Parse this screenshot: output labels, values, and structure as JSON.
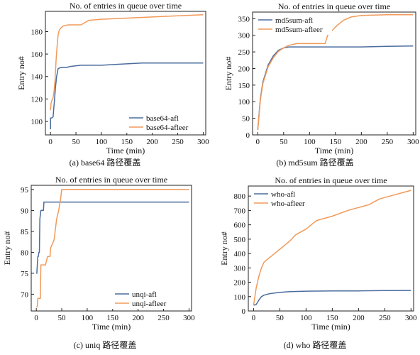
{
  "colors": {
    "afl": "#4a6c9e",
    "afleer": "#f19a5a",
    "axis": "#222222"
  },
  "chart_data": [
    {
      "type": "line",
      "title": "No. of entries in queue over time",
      "xlabel": "Time (min)",
      "ylabel": "Entry no#",
      "xlim": [
        -10,
        305
      ],
      "ylim": [
        88,
        198
      ],
      "xticks": [
        0,
        50,
        100,
        150,
        200,
        250,
        300
      ],
      "yticks": [
        100,
        120,
        140,
        160,
        180
      ],
      "legend_position": "lower-right",
      "caption": "(a) base64 路径覆盖",
      "series": [
        {
          "name": "base64-afl",
          "color": "#4a6c9e",
          "x": [
            0,
            0.2,
            2,
            5,
            8,
            10,
            12,
            15,
            20,
            30,
            40,
            60,
            100,
            140,
            180,
            300
          ],
          "y": [
            93,
            103,
            103,
            104,
            120,
            131,
            140,
            147,
            148,
            148,
            149,
            150,
            150,
            151,
            152,
            152
          ]
        },
        {
          "name": "base64-afleer",
          "color": "#f19a5a",
          "x": [
            0,
            1,
            3,
            5,
            7,
            9,
            11,
            13,
            15,
            17,
            20,
            25,
            35,
            60,
            75,
            100,
            150,
            200,
            250,
            300
          ],
          "y": [
            110,
            116,
            119,
            121,
            127,
            137,
            155,
            167,
            177,
            181,
            183,
            185,
            186,
            186,
            190,
            191,
            192,
            193,
            194,
            195
          ]
        }
      ]
    },
    {
      "type": "line",
      "title": "No. of entries in queue over time",
      "xlabel": "Time (min)",
      "ylabel": "Entry no#",
      "xlim": [
        -10,
        305
      ],
      "ylim": [
        0,
        370
      ],
      "xticks": [
        0,
        50,
        100,
        150,
        200,
        250,
        300
      ],
      "yticks": [
        0,
        50,
        100,
        150,
        200,
        250,
        300,
        350
      ],
      "legend_position": "top-left",
      "caption": "(b) md5sum 路径覆盖",
      "series": [
        {
          "name": "md5sum-afl",
          "color": "#4a6c9e",
          "x": [
            0,
            5,
            10,
            20,
            30,
            40,
            50,
            60,
            80,
            100,
            150,
            200,
            250,
            300
          ],
          "y": [
            15,
            110,
            160,
            210,
            238,
            255,
            262,
            265,
            265,
            265,
            265,
            265,
            267,
            268
          ]
        },
        {
          "name": "md5sum-afleer",
          "color": "#f19a5a",
          "x": [
            0,
            5,
            10,
            20,
            30,
            40,
            50,
            60,
            75,
            100,
            130,
            135,
            150,
            165,
            180,
            200,
            250,
            300
          ],
          "y": [
            15,
            105,
            155,
            205,
            232,
            252,
            262,
            270,
            275,
            275,
            275,
            300,
            325,
            345,
            355,
            360,
            362,
            362
          ]
        }
      ]
    },
    {
      "type": "line",
      "title": "No. of entries in queue over time",
      "xlabel": "Time (min)",
      "ylabel": "Entry no#",
      "xlim": [
        -10,
        305
      ],
      "ylim": [
        66,
        96
      ],
      "xticks": [
        0,
        50,
        100,
        150,
        200,
        250,
        300
      ],
      "yticks": [
        70,
        75,
        80,
        85,
        90,
        95
      ],
      "legend_position": "lower-right",
      "caption": "(c) uniq 路径覆盖",
      "series": [
        {
          "name": "unqi-afl",
          "color": "#4a6c9e",
          "x": [
            0,
            1,
            3,
            4,
            5,
            6,
            7,
            9,
            10,
            11,
            14,
            15,
            300
          ],
          "y": [
            75,
            75,
            79,
            79,
            80,
            80,
            88,
            90,
            90,
            90,
            90,
            92,
            92
          ]
        },
        {
          "name": "unqi-afleer",
          "color": "#f19a5a",
          "x": [
            0,
            2,
            3,
            5,
            8,
            9,
            17,
            18,
            22,
            23,
            27,
            28,
            35,
            38,
            40,
            44,
            48,
            50,
            300
          ],
          "y": [
            67,
            67,
            69,
            69,
            69,
            77,
            77,
            77,
            79,
            79,
            79,
            81,
            83,
            86,
            88,
            90,
            93,
            95,
            95
          ]
        }
      ]
    },
    {
      "type": "line",
      "title": "No. of entries in queue over time",
      "xlabel": "Time (min)",
      "ylabel": "Entry no#",
      "xlim": [
        -10,
        305
      ],
      "ylim": [
        0,
        870
      ],
      "xticks": [
        0,
        50,
        100,
        150,
        200,
        250,
        300
      ],
      "yticks": [
        0,
        100,
        200,
        300,
        400,
        500,
        600,
        700,
        800
      ],
      "legend_position": "top-left",
      "caption": "(d) who 路径覆盖",
      "series": [
        {
          "name": "who-afl",
          "color": "#4a6c9e",
          "x": [
            0,
            5,
            10,
            15,
            20,
            30,
            50,
            70,
            100,
            150,
            200,
            250,
            300
          ],
          "y": [
            40,
            45,
            75,
            100,
            110,
            120,
            130,
            135,
            138,
            140,
            140,
            142,
            143
          ]
        },
        {
          "name": "who-afleer",
          "color": "#f19a5a",
          "x": [
            0,
            5,
            10,
            15,
            20,
            30,
            40,
            50,
            60,
            70,
            80,
            90,
            100,
            110,
            120,
            150,
            180,
            200,
            220,
            240,
            260,
            280,
            300
          ],
          "y": [
            40,
            160,
            240,
            300,
            340,
            370,
            400,
            430,
            460,
            490,
            530,
            550,
            570,
            600,
            630,
            660,
            700,
            720,
            740,
            780,
            800,
            820,
            840
          ]
        }
      ]
    }
  ]
}
